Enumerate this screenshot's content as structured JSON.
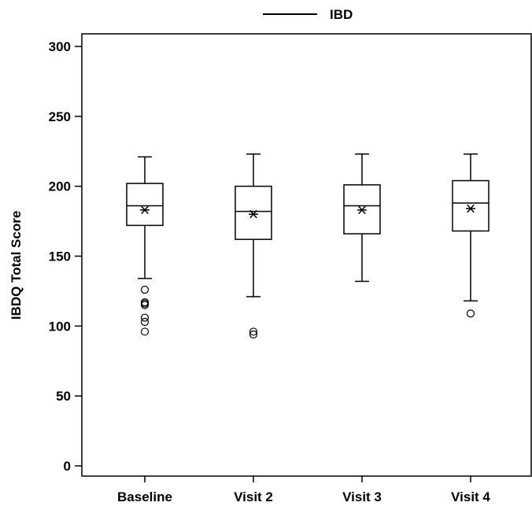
{
  "chart_data": {
    "type": "box",
    "title": "",
    "xlabel": "",
    "ylabel": "IBDQ Total Score",
    "ylim": [
      0,
      300
    ],
    "yticks": [
      0,
      50,
      100,
      150,
      200,
      250,
      300
    ],
    "grid": false,
    "legend": {
      "position": "top-center",
      "entries": [
        {
          "label": "IBD",
          "symbol": "line"
        }
      ]
    },
    "categories": [
      "Baseline",
      "Visit 2",
      "Visit 3",
      "Visit 4"
    ],
    "series": [
      {
        "name": "IBD",
        "boxes": [
          {
            "category": "Baseline",
            "whisker_low": 134,
            "q1": 172,
            "median": 186,
            "mean": 183,
            "q3": 202,
            "whisker_high": 221,
            "outliers": [
              126,
              117,
              116,
              115,
              106,
              103,
              96
            ]
          },
          {
            "category": "Visit 2",
            "whisker_low": 121,
            "q1": 162,
            "median": 182,
            "mean": 180,
            "q3": 200,
            "whisker_high": 223,
            "outliers": [
              96,
              94
            ]
          },
          {
            "category": "Visit 3",
            "whisker_low": 132,
            "q1": 166,
            "median": 186,
            "mean": 183,
            "q3": 201,
            "whisker_high": 223,
            "outliers": []
          },
          {
            "category": "Visit 4",
            "whisker_low": 118,
            "q1": 168,
            "median": 188,
            "mean": 184,
            "q3": 204,
            "whisker_high": 223,
            "outliers": [
              109
            ]
          }
        ]
      }
    ]
  }
}
